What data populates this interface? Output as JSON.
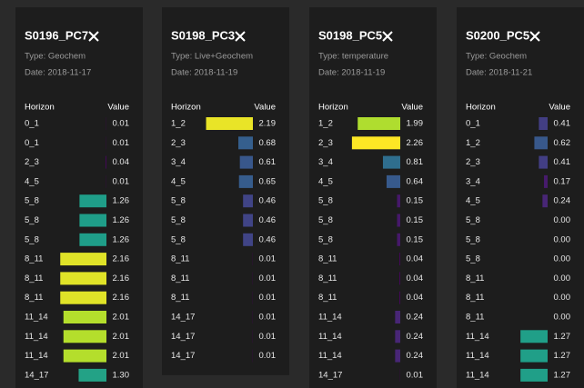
{
  "panels": [
    {
      "title": "S0196_PC7",
      "type": "Type: Geochem",
      "date": "Date: 2018-11-17",
      "header": [
        "Horizon",
        "Value"
      ],
      "rows": [
        [
          "0_1",
          "0.01"
        ],
        [
          "0_1",
          "0.01"
        ],
        [
          "2_3",
          "0.04"
        ],
        [
          "4_5",
          "0.01"
        ],
        [
          "5_8",
          "1.26"
        ],
        [
          "5_8",
          "1.26"
        ],
        [
          "5_8",
          "1.26"
        ],
        [
          "8_11",
          "2.16"
        ],
        [
          "8_11",
          "2.16"
        ],
        [
          "8_11",
          "2.16"
        ],
        [
          "11_14",
          "2.01"
        ],
        [
          "11_14",
          "2.01"
        ],
        [
          "11_14",
          "2.01"
        ],
        [
          "14_17",
          "1.30"
        ]
      ]
    },
    {
      "title": "S0198_PC3",
      "type": "Type: Live+Geochem",
      "date": "Date: 2018-11-19",
      "header": [
        "Horizon",
        "Value"
      ],
      "rows": [
        [
          "1_2",
          "2.19"
        ],
        [
          "2_3",
          "0.68"
        ],
        [
          "3_4",
          "0.61"
        ],
        [
          "4_5",
          "0.65"
        ],
        [
          "5_8",
          "0.46"
        ],
        [
          "5_8",
          "0.46"
        ],
        [
          "5_8",
          "0.46"
        ],
        [
          "8_11",
          "0.01"
        ],
        [
          "8_11",
          "0.01"
        ],
        [
          "8_11",
          "0.01"
        ],
        [
          "14_17",
          "0.01"
        ],
        [
          "14_17",
          "0.01"
        ],
        [
          "14_17",
          "0.01"
        ]
      ]
    },
    {
      "title": "S0198_PC5",
      "type": "Type: temperature",
      "date": "Date: 2018-11-19",
      "header": [
        "Horizon",
        "Value"
      ],
      "rows": [
        [
          "1_2",
          "1.99"
        ],
        [
          "2_3",
          "2.26"
        ],
        [
          "3_4",
          "0.81"
        ],
        [
          "4_5",
          "0.64"
        ],
        [
          "5_8",
          "0.15"
        ],
        [
          "5_8",
          "0.15"
        ],
        [
          "5_8",
          "0.15"
        ],
        [
          "8_11",
          "0.04"
        ],
        [
          "8_11",
          "0.04"
        ],
        [
          "8_11",
          "0.04"
        ],
        [
          "11_14",
          "0.24"
        ],
        [
          "11_14",
          "0.24"
        ],
        [
          "11_14",
          "0.24"
        ],
        [
          "14_17",
          "0.01"
        ]
      ]
    },
    {
      "title": "S0200_PC5",
      "type": "Type: Geochem",
      "date": "Date: 2018-11-21",
      "header": [
        "Horizon",
        "Value"
      ],
      "rows": [
        [
          "0_1",
          "0.41"
        ],
        [
          "1_2",
          "0.62"
        ],
        [
          "2_3",
          "0.41"
        ],
        [
          "3_4",
          "0.17"
        ],
        [
          "4_5",
          "0.24"
        ],
        [
          "5_8",
          "0.00"
        ],
        [
          "5_8",
          "0.00"
        ],
        [
          "5_8",
          "0.00"
        ],
        [
          "8_11",
          "0.00"
        ],
        [
          "8_11",
          "0.00"
        ],
        [
          "8_11",
          "0.00"
        ],
        [
          "11_14",
          "1.27"
        ],
        [
          "11_14",
          "1.27"
        ],
        [
          "11_14",
          "1.27"
        ]
      ]
    }
  ]
}
